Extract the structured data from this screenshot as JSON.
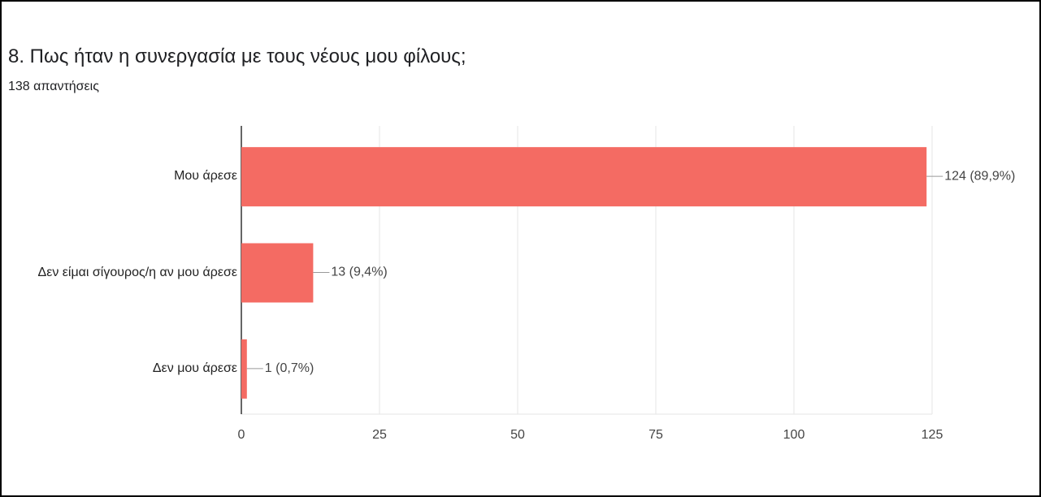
{
  "chart_data": {
    "type": "bar",
    "orientation": "horizontal",
    "title": "8. Πως ήταν η συνεργασία με τους νέους μου φίλους;",
    "subtitle": "138 απαντήσεις",
    "categories": [
      "Μου άρεσε",
      "Δεν είμαι σίγουρος/η αν μου άρεσε",
      "Δεν μου άρεσε"
    ],
    "values": [
      124,
      13,
      1
    ],
    "value_labels": [
      "124 (89,9%)",
      "13 (9,4%)",
      "1 (0,7%)"
    ],
    "color": "#f46b63",
    "xlim": [
      0,
      125
    ],
    "xticks": [
      0,
      25,
      50,
      75,
      100,
      125
    ],
    "grid": true
  }
}
